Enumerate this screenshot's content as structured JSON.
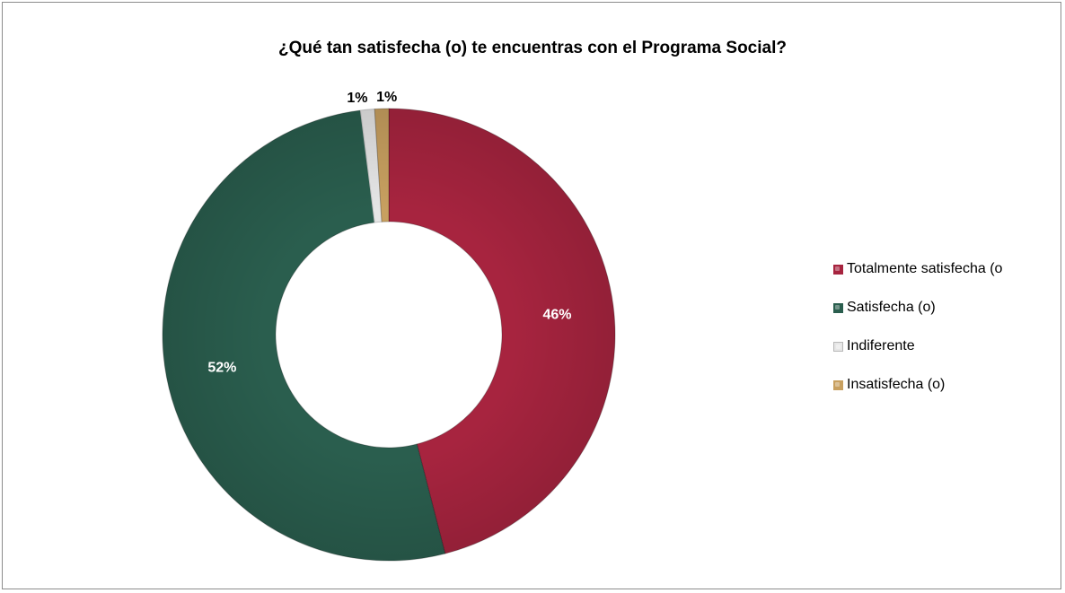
{
  "chart_data": {
    "type": "pie",
    "title": "¿Qué tan satisfecha (o) te encuentras con el Programa Social?",
    "donut": true,
    "categories": [
      "Totalmente satisfecha (o",
      "Satisfecha (o)",
      "Indiferente",
      "Insatisfecha (o)"
    ],
    "values": [
      46,
      52,
      1,
      1
    ],
    "data_labels": [
      "46%",
      "52%",
      "1%",
      "1%"
    ],
    "colors": [
      "#A7243F",
      "#2A5E4E",
      "#E6E6E6",
      "#C8A060"
    ],
    "legend_position": "right"
  }
}
